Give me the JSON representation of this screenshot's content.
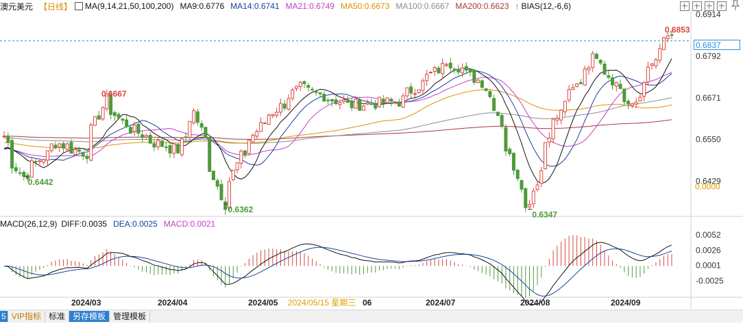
{
  "legend": {
    "symbol": "澳元美元",
    "period": "【日线】",
    "ma_set": "MA(9,14,21,50,100,200)",
    "ma9": "MA9:0.6776",
    "ma14": "MA14:0.6741",
    "ma21": "MA21:0.6749",
    "ma50": "MA50:0.6673",
    "ma100": "MA100:0.6667",
    "ma200": "MA200:0.6623",
    "bias": "BIAS(12,-6,6)"
  },
  "macd_legend": {
    "name": "MACD(26,12,9)",
    "diff": "DIFF:0.0035",
    "dea": "DEA:0.0025",
    "macd": "MACD:0.0021"
  },
  "price_axis": {
    "ticks": [
      "0.6914",
      "0.6792",
      "0.6671",
      "0.6550",
      "0.6429"
    ],
    "zero_label": "0.0000",
    "current": "0.6837"
  },
  "macd_axis": {
    "ticks": [
      "0.0052",
      "0.0026",
      "0.0001",
      "-0.0025"
    ]
  },
  "annotations": {
    "high_1": "0.6667",
    "low_1": "0.6442",
    "low_2": "0.6362",
    "low_3": "0.6347",
    "high_2": "0.6853"
  },
  "date_axis": {
    "labels": [
      "2024/03",
      "2024/04",
      "2024/05",
      "2024/05/15 星期三",
      "06",
      "2024/07",
      "2024/08",
      "2024/09"
    ]
  },
  "toolbar": {
    "edge": "5",
    "vip": "VIP指标",
    "standard": "标准",
    "save_template": "另存模板",
    "manage_template": "管理模板"
  },
  "colors": {
    "up": "#d9473f",
    "down": "#4e9a3a",
    "ma9": "#111111",
    "ma14": "#1b3f9e",
    "ma21": "#c23ec7",
    "ma50": "#e09000",
    "ma100": "#8c8c8c",
    "ma200": "#a83a3a",
    "diff": "#111111",
    "dea": "#1b3f9e",
    "price_line": "#2a8fd8",
    "axis_text": "#333333"
  },
  "chart_data": [
    {
      "type": "candlestick",
      "title": "澳元美元 日线",
      "x_range": [
        "2024-02-01",
        "2024-09-25"
      ],
      "ylim": [
        0.633,
        0.692
      ],
      "ohlc_anchor": [
        {
          "x": "2024-02-01",
          "y": 0.656
        },
        {
          "x": "2024-02-05",
          "y": 0.648
        },
        {
          "x": "2024-02-08",
          "y": 0.6442
        },
        {
          "x": "2024-02-20",
          "y": 0.654
        },
        {
          "x": "2024-03-01",
          "y": 0.651
        },
        {
          "x": "2024-03-08",
          "y": 0.6667
        },
        {
          "x": "2024-03-14",
          "y": 0.66
        },
        {
          "x": "2024-03-26",
          "y": 0.654
        },
        {
          "x": "2024-04-03",
          "y": 0.652
        },
        {
          "x": "2024-04-09",
          "y": 0.663
        },
        {
          "x": "2024-04-19",
          "y": 0.6362
        },
        {
          "x": "2024-04-25",
          "y": 0.65
        },
        {
          "x": "2024-05-03",
          "y": 0.66
        },
        {
          "x": "2024-05-16",
          "y": 0.67
        },
        {
          "x": "2024-06-03",
          "y": 0.665
        },
        {
          "x": "2024-06-20",
          "y": 0.666
        },
        {
          "x": "2024-07-08",
          "y": 0.678
        },
        {
          "x": "2024-07-22",
          "y": 0.67
        },
        {
          "x": "2024-08-05",
          "y": 0.6347
        },
        {
          "x": "2024-08-14",
          "y": 0.66
        },
        {
          "x": "2024-08-29",
          "y": 0.68
        },
        {
          "x": "2024-09-06",
          "y": 0.67
        },
        {
          "x": "2024-09-11",
          "y": 0.664
        },
        {
          "x": "2024-09-20",
          "y": 0.68
        },
        {
          "x": "2024-09-24",
          "y": 0.6853
        },
        {
          "x": "2024-09-25",
          "y": 0.6837
        }
      ],
      "moving_averages": [
        "MA9",
        "MA14",
        "MA21",
        "MA50",
        "MA100",
        "MA200"
      ]
    },
    {
      "type": "bar",
      "title": "MACD(26,12,9)",
      "ylim": [
        -0.005,
        0.006
      ],
      "series": [
        {
          "name": "DIFF",
          "type": "line"
        },
        {
          "name": "DEA",
          "type": "line"
        },
        {
          "name": "MACD",
          "type": "bar"
        }
      ],
      "last": {
        "DIFF": 0.0035,
        "DEA": 0.0025,
        "MACD": 0.0021
      }
    }
  ]
}
